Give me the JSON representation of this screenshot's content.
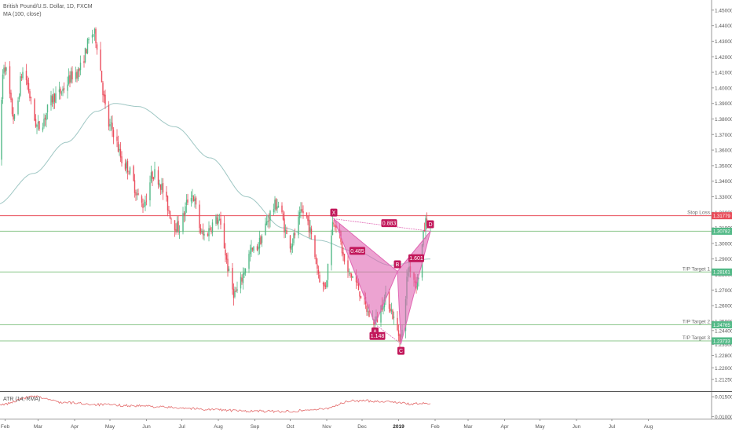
{
  "symbol_title": "British Pound/U.S. Dollar, 1D, FXCM",
  "ma_label": "MA (100, close)",
  "atr_label": "ATR (14, RMA)",
  "colors": {
    "up": "#53b987",
    "down": "#eb4d5c",
    "ma": "#9fc7c4",
    "pattern_fill": "#e066b3",
    "pattern_label": "#c2185b",
    "stop_line": "#e84d5a",
    "target_line": "#8cc78c",
    "price_badge": "#53b987",
    "atr_line": "#e36a6a"
  },
  "chart_data": {
    "type": "candlestick",
    "y_range": [
      1.205,
      1.4565
    ],
    "y_ticks": [
      "1.45000",
      "1.44000",
      "1.43000",
      "1.42000",
      "1.41000",
      "1.40000",
      "1.39000",
      "1.38000",
      "1.37000",
      "1.36000",
      "1.35000",
      "1.34000",
      "1.33000",
      "1.32000",
      "1.31000",
      "1.30000",
      "1.29000",
      "1.28000",
      "1.27000",
      "1.26000",
      "1.25000",
      "1.24400",
      "1.23500",
      "1.22800",
      "1.22000",
      "1.21250"
    ],
    "x_labels": [
      "Feb",
      "Mar",
      "Apr",
      "May",
      "Jun",
      "Jul",
      "Aug",
      "Sep",
      "Oct",
      "Nov",
      "Dec",
      "2019",
      "Feb",
      "Mar",
      "Apr",
      "May",
      "Jun",
      "Jul",
      "Aug"
    ],
    "price_anchors": [
      {
        "date": "2018-01-26",
        "price": 1.35
      },
      {
        "date": "2018-01-31",
        "price": 1.415
      },
      {
        "date": "2018-02-09",
        "price": 1.38
      },
      {
        "date": "2018-02-16",
        "price": 1.41
      },
      {
        "date": "2018-03-01",
        "price": 1.375
      },
      {
        "date": "2018-03-16",
        "price": 1.395
      },
      {
        "date": "2018-04-03",
        "price": 1.41
      },
      {
        "date": "2018-04-17",
        "price": 1.435
      },
      {
        "date": "2018-05-01",
        "price": 1.375
      },
      {
        "date": "2018-05-14",
        "price": 1.35
      },
      {
        "date": "2018-05-29",
        "price": 1.325
      },
      {
        "date": "2018-06-07",
        "price": 1.345
      },
      {
        "date": "2018-06-28",
        "price": 1.31
      },
      {
        "date": "2018-07-09",
        "price": 1.332
      },
      {
        "date": "2018-07-19",
        "price": 1.305
      },
      {
        "date": "2018-07-31",
        "price": 1.315
      },
      {
        "date": "2018-08-15",
        "price": 1.268
      },
      {
        "date": "2018-08-30",
        "price": 1.295
      },
      {
        "date": "2018-09-20",
        "price": 1.325
      },
      {
        "date": "2018-10-01",
        "price": 1.3
      },
      {
        "date": "2018-10-12",
        "price": 1.32
      },
      {
        "date": "2018-10-30",
        "price": 1.272
      },
      {
        "date": "2018-11-07",
        "price": 1.315
      },
      {
        "date": "2018-11-20",
        "price": 1.28
      },
      {
        "date": "2018-12-12",
        "price": 1.25
      },
      {
        "date": "2018-12-21",
        "price": 1.265
      },
      {
        "date": "2019-01-03",
        "price": 1.24
      },
      {
        "date": "2019-01-10",
        "price": 1.285
      },
      {
        "date": "2019-01-16",
        "price": 1.275
      },
      {
        "date": "2019-01-25",
        "price": 1.315
      },
      {
        "date": "2019-01-28",
        "price": 1.308
      }
    ],
    "ma_anchors": [
      {
        "date": "2018-01-25",
        "price": 1.325
      },
      {
        "date": "2018-02-25",
        "price": 1.345
      },
      {
        "date": "2018-03-25",
        "price": 1.365
      },
      {
        "date": "2018-04-20",
        "price": 1.385
      },
      {
        "date": "2018-05-05",
        "price": 1.39
      },
      {
        "date": "2018-05-25",
        "price": 1.388
      },
      {
        "date": "2018-06-25",
        "price": 1.375
      },
      {
        "date": "2018-07-25",
        "price": 1.355
      },
      {
        "date": "2018-08-25",
        "price": 1.33
      },
      {
        "date": "2018-09-25",
        "price": 1.31
      },
      {
        "date": "2018-10-25",
        "price": 1.302
      },
      {
        "date": "2018-11-25",
        "price": 1.295
      },
      {
        "date": "2018-12-25",
        "price": 1.286
      },
      {
        "date": "2019-01-28",
        "price": 1.29
      }
    ],
    "pattern": {
      "points": [
        {
          "label": "X",
          "date": "2018-11-07",
          "price": 1.3158
        },
        {
          "label": "A",
          "date": "2018-12-12",
          "price": 1.248
        },
        {
          "label": "B",
          "date": "2018-12-31",
          "price": 1.282
        },
        {
          "label": "C",
          "date": "2019-01-03",
          "price": 1.2355
        },
        {
          "label": "D",
          "date": "2019-01-28",
          "price": 1.3078
        }
      ],
      "ratios": [
        {
          "text": "0.883",
          "date": "2018-12-24",
          "price": 1.313
        },
        {
          "text": "0.485",
          "date": "2018-11-27",
          "price": 1.2952
        },
        {
          "text": "1.601",
          "date": "2019-01-16",
          "price": 1.2905
        },
        {
          "text": "1.148",
          "date": "2018-12-14",
          "price": 1.2405
        }
      ]
    },
    "levels": [
      {
        "label": "Stop Loss",
        "price": 1.31779,
        "badge": "1.31779",
        "kind": "stop"
      },
      {
        "label": "",
        "price": 1.30782,
        "badge": "1.30782",
        "kind": "current"
      },
      {
        "label": "T/P Target 1",
        "price": 1.28161,
        "badge": "1.28161",
        "kind": "target"
      },
      {
        "label": "T/P Target 2",
        "price": 1.24765,
        "badge": "1.24765",
        "kind": "target"
      },
      {
        "label": "T/P Target 3",
        "price": 1.23733,
        "badge": "1.23733",
        "kind": "target"
      }
    ],
    "atr": {
      "range": [
        0.0095,
        0.0162
      ],
      "ticks": [
        "0.01500",
        "0.01000"
      ],
      "anchors": [
        {
          "date": "2018-01-25",
          "value": 0.0128
        },
        {
          "date": "2018-02-25",
          "value": 0.015
        },
        {
          "date": "2018-03-25",
          "value": 0.0135
        },
        {
          "date": "2018-04-25",
          "value": 0.013
        },
        {
          "date": "2018-05-25",
          "value": 0.0127
        },
        {
          "date": "2018-06-25",
          "value": 0.0123
        },
        {
          "date": "2018-07-25",
          "value": 0.0118
        },
        {
          "date": "2018-08-25",
          "value": 0.0114
        },
        {
          "date": "2018-09-25",
          "value": 0.0113
        },
        {
          "date": "2018-10-25",
          "value": 0.0118
        },
        {
          "date": "2018-11-25",
          "value": 0.014
        },
        {
          "date": "2018-12-25",
          "value": 0.0138
        },
        {
          "date": "2019-01-10",
          "value": 0.0132
        },
        {
          "date": "2019-01-28",
          "value": 0.0133
        }
      ]
    }
  }
}
